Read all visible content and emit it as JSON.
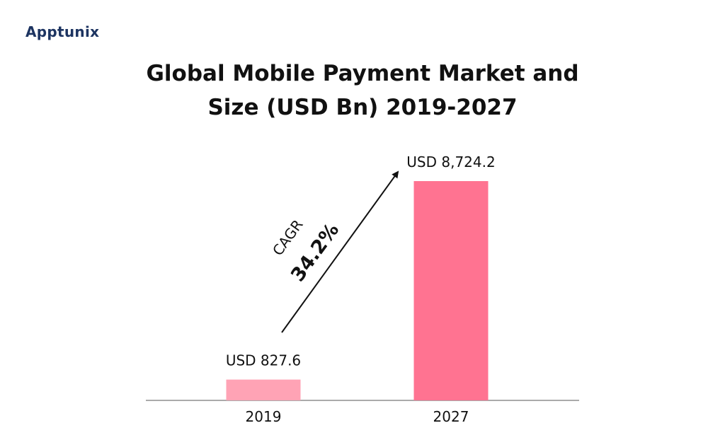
{
  "logo": "Apptunix",
  "chart_data": {
    "type": "bar",
    "title": "Global Mobile Payment Market and Size (USD Bn) 2019-2027",
    "categories": [
      "2019",
      "2027"
    ],
    "values": [
      827.6,
      8724.2
    ],
    "value_labels": [
      "USD 827.6",
      "USD 8,724.2"
    ],
    "colors": [
      "#ffa3b5",
      "#ff7391"
    ],
    "annotations": [
      "CAGR",
      "34.2%"
    ]
  }
}
